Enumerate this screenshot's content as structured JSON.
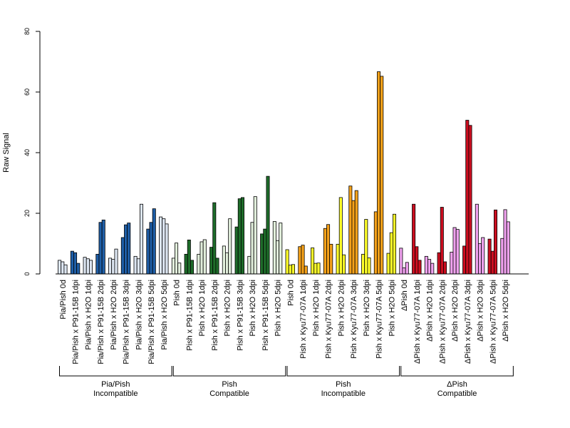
{
  "chart_data": {
    "type": "bar",
    "ylabel": "Raw Signal",
    "ylim": [
      0,
      80
    ],
    "yticks": [
      0,
      20,
      40,
      60,
      80
    ],
    "grid": false,
    "replicates_per_category": 3,
    "categories": [
      "Pia/Pish 0d",
      "Pia/Pish x P91-15B 1dpi",
      "Pia/Pish x H2O 1dpi",
      "Pia/Pish x P91-15B 2dpi",
      "Pia/Pish x H2O 2dpi",
      "Pia/Pish x P91-15B 3dpi",
      "Pia/Pish x H2O 3dpi",
      "Pia/Pish x P91-15B 5dpi",
      "Pia/Pish x H2O 5dpi",
      "Pish 0d",
      "Pish x P91-15B 1dpi",
      "Pish x H2O 1dpi",
      "Pish x P91-15B 2dpi",
      "Pish x H2O 2dpi",
      "Pish x P91-15B 3dpi",
      "Pish x H2O 3dpi",
      "Pish x P91-15B 5dpi",
      "Pish x H2O 5dpi",
      "Pish 0d",
      "Pish x Kyu77-07A 1dpi",
      "Pish x H2O 1dpi",
      "Pish x Kyu77-07A 2dpi",
      "Pish x H2O 2dpi",
      "Pish x Kyu77-07A 3dpi",
      "Pish x H2O 3dpi",
      "Pish x Kyu77-07A 5dpi",
      "Pish x H2O 5dpi",
      "ΔPish 0d",
      "ΔPish x Kyu77-07A 1dpi",
      "ΔPish x H2O 1dpi",
      "ΔPish x Kyu77-07A 2dpi",
      "ΔPish x H2O 2dpi",
      "ΔPish x Kyu77-07A 3dpi",
      "ΔPish x H2O 3dpi",
      "ΔPish x Kyu77-07A 5dpi",
      "ΔPish x H2O 5dpi"
    ],
    "values": [
      [
        4.5,
        4.0,
        3.0
      ],
      [
        7.5,
        7.0,
        3.5
      ],
      [
        5.5,
        5.0,
        4.5
      ],
      [
        6.5,
        17.0,
        17.8
      ],
      [
        5.2,
        4.8,
        8.2
      ],
      [
        12.0,
        16.2,
        16.8
      ],
      [
        5.8,
        5.0,
        23.0
      ],
      [
        14.8,
        17.0,
        21.5
      ],
      [
        18.8,
        18.2,
        16.5
      ],
      [
        5.2,
        10.2,
        3.6
      ],
      [
        6.5,
        11.2,
        4.5
      ],
      [
        6.5,
        10.6,
        11.3
      ],
      [
        8.8,
        23.5,
        5.2
      ],
      [
        9.2,
        7.0,
        18.2
      ],
      [
        15.5,
        24.8,
        25.2
      ],
      [
        5.8,
        17.0,
        25.5
      ],
      [
        13.2,
        14.8,
        32.2
      ],
      [
        17.3,
        11.0,
        16.8
      ],
      [
        8.0,
        2.9,
        3.1
      ],
      [
        9.0,
        9.5,
        2.6
      ],
      [
        8.6,
        3.5,
        3.6
      ],
      [
        15.0,
        16.3,
        9.8
      ],
      [
        9.8,
        25.2,
        6.3
      ],
      [
        29.0,
        24.2,
        27.5
      ],
      [
        6.5,
        18.0,
        5.3
      ],
      [
        20.5,
        66.7,
        65.2
      ],
      [
        6.8,
        13.6,
        19.7
      ],
      [
        8.5,
        2.0,
        3.8
      ],
      [
        23.0,
        9.0,
        4.5
      ],
      [
        5.8,
        4.8,
        3.5
      ],
      [
        7.0,
        22.0,
        4.0
      ],
      [
        7.2,
        15.3,
        14.7
      ],
      [
        9.2,
        50.7,
        49.0
      ],
      [
        23.0,
        10.0,
        12.0
      ],
      [
        11.5,
        7.5,
        21.1
      ],
      [
        11.7,
        21.2,
        17.2
      ]
    ],
    "bar_colors": [
      "#dde6f2",
      "#1f5fa8",
      "#dde6f2",
      "#1f5fa8",
      "#dde6f2",
      "#1f5fa8",
      "#dde6f2",
      "#1f5fa8",
      "#dde6f2",
      "#e2efdc",
      "#1e6d2a",
      "#e2efdc",
      "#1e6d2a",
      "#e2efdc",
      "#1e6d2a",
      "#e2efdc",
      "#1e6d2a",
      "#e2efdc",
      "#ffff2a",
      "#f6a21a",
      "#ffff2a",
      "#f6a21a",
      "#ffff2a",
      "#f6a21a",
      "#ffff2a",
      "#f6a21a",
      "#ffff2a",
      "#f0a2ef",
      "#cc0e20",
      "#f0a2ef",
      "#cc0e20",
      "#f0a2ef",
      "#cc0e20",
      "#f0a2ef",
      "#cc0e20",
      "#f0a2ef"
    ],
    "groups": [
      {
        "line1": "Pia/Pish",
        "line2": "Incompatible",
        "from": 0,
        "to": 8
      },
      {
        "line1": "Pish",
        "line2": "Compatible",
        "from": 9,
        "to": 17
      },
      {
        "line1": "Pish",
        "line2": "Incompatible",
        "from": 18,
        "to": 26
      },
      {
        "line1": "ΔPish",
        "line2": "Compatible",
        "from": 27,
        "to": 35
      }
    ]
  }
}
